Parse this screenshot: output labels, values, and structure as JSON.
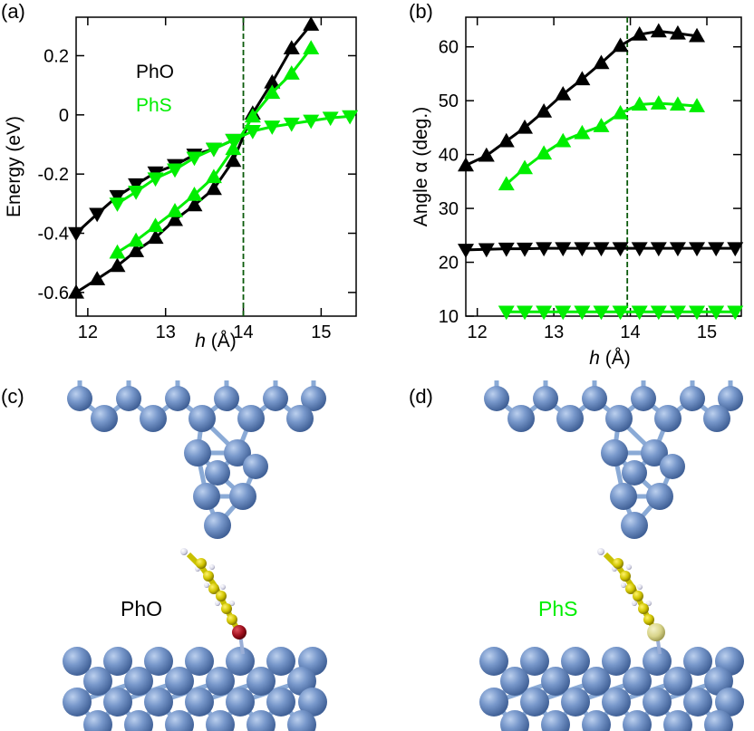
{
  "panel_labels": {
    "a": "(a)",
    "b": "(b)",
    "c": "(c)",
    "d": "(d)"
  },
  "chart_data": [
    {
      "type": "line",
      "panel": "(a)",
      "title": "",
      "xlabel": "h (Å)",
      "xlabel_var": "h",
      "xlabel_unit": "(Å)",
      "ylabel": "Energy (eV)",
      "xlim": [
        11.85,
        15.45
      ],
      "ylim": [
        -0.68,
        0.33
      ],
      "xticks": [
        12,
        13,
        14,
        15
      ],
      "yticks": [
        -0.6,
        -0.4,
        -0.2,
        0,
        0.2
      ],
      "ytick_labels": [
        "-0.6",
        "-0.4",
        "-0.2",
        "0",
        "0.2"
      ],
      "vline": 14.0,
      "grid": false,
      "legend": [
        {
          "name": "PhO",
          "color": "#000000"
        },
        {
          "name": "PhS",
          "color": "#00ee00"
        }
      ],
      "series": [
        {
          "name": "PhO",
          "color": "#000000",
          "marker": "triangle-up",
          "x": [
            11.85,
            12.12,
            12.38,
            12.62,
            12.87,
            13.12,
            13.37,
            13.62,
            13.87,
            14.12,
            14.37,
            14.62,
            14.87
          ],
          "y": [
            -0.6,
            -0.555,
            -0.51,
            -0.46,
            -0.415,
            -0.355,
            -0.305,
            -0.25,
            -0.155,
            0.005,
            0.11,
            0.225,
            0.305
          ]
        },
        {
          "name": "PhO",
          "color": "#000000",
          "marker": "triangle-down",
          "x": [
            11.85,
            12.12,
            12.38,
            12.62,
            12.87,
            13.12,
            13.37,
            13.62,
            13.87
          ],
          "y": [
            -0.4,
            -0.335,
            -0.275,
            -0.235,
            -0.195,
            -0.17,
            -0.135,
            -0.115,
            -0.085
          ]
        },
        {
          "name": "PhS",
          "color": "#00ee00",
          "marker": "triangle-up",
          "x": [
            12.38,
            12.62,
            12.87,
            13.12,
            13.37,
            13.62,
            13.87,
            14.12,
            14.37,
            14.62,
            14.87
          ],
          "y": [
            -0.465,
            -0.425,
            -0.375,
            -0.325,
            -0.27,
            -0.21,
            -0.115,
            -0.005,
            0.075,
            0.14,
            0.225
          ]
        },
        {
          "name": "PhS",
          "color": "#00ee00",
          "marker": "triangle-down",
          "x": [
            12.38,
            12.62,
            12.87,
            13.12,
            13.37,
            13.62,
            13.87,
            14.12,
            14.37,
            14.62,
            14.87,
            15.12,
            15.37
          ],
          "y": [
            -0.3,
            -0.26,
            -0.215,
            -0.185,
            -0.145,
            -0.115,
            -0.085,
            -0.055,
            -0.04,
            -0.03,
            -0.02,
            -0.01,
            -0.005
          ]
        }
      ]
    },
    {
      "type": "line",
      "panel": "(b)",
      "title": "",
      "xlabel": "h (Å)",
      "xlabel_var": "h",
      "xlabel_unit": "(Å)",
      "ylabel": "Angle α (deg.)",
      "xlim": [
        11.85,
        15.45
      ],
      "ylim": [
        10,
        65.5
      ],
      "xticks": [
        12,
        13,
        14,
        15
      ],
      "yticks": [
        10,
        20,
        30,
        40,
        50,
        60
      ],
      "ytick_labels": [
        "10",
        "20",
        "30",
        "40",
        "50",
        "60"
      ],
      "vline": 13.96,
      "grid": false,
      "series": [
        {
          "name": "PhO",
          "color": "#000000",
          "marker": "triangle-up",
          "x": [
            11.85,
            12.12,
            12.38,
            12.62,
            12.87,
            13.12,
            13.37,
            13.62,
            13.87,
            14.12,
            14.37,
            14.62,
            14.87
          ],
          "y": [
            38,
            39.8,
            42.5,
            45,
            48,
            51.2,
            54,
            57,
            60.2,
            62.3,
            62.9,
            62.5,
            62
          ]
        },
        {
          "name": "PhO",
          "color": "#000000",
          "marker": "triangle-down",
          "x": [
            11.85,
            12.12,
            12.38,
            12.62,
            12.87,
            13.12,
            13.37,
            13.62,
            13.87,
            14.12,
            14.37,
            14.62,
            14.87,
            15.12,
            15.37
          ],
          "y": [
            22.3,
            22.4,
            22.5,
            22.5,
            22.6,
            22.6,
            22.6,
            22.6,
            22.6,
            22.6,
            22.6,
            22.6,
            22.6,
            22.6,
            22.6
          ]
        },
        {
          "name": "PhS",
          "color": "#00ee00",
          "marker": "triangle-up",
          "x": [
            12.38,
            12.62,
            12.87,
            13.12,
            13.37,
            13.62,
            13.87,
            14.12,
            14.37,
            14.62,
            14.87
          ],
          "y": [
            34.5,
            37.5,
            40.2,
            42.5,
            44,
            45.3,
            47.7,
            49.3,
            49.5,
            49.3,
            49
          ]
        },
        {
          "name": "PhS",
          "color": "#00ee00",
          "marker": "triangle-down",
          "x": [
            12.38,
            12.62,
            12.87,
            13.12,
            13.37,
            13.62,
            13.87,
            14.12,
            14.37,
            14.62,
            14.87,
            15.12,
            15.37
          ],
          "y": [
            10.8,
            10.8,
            10.8,
            10.8,
            10.8,
            10.8,
            10.8,
            10.8,
            10.8,
            10.8,
            10.8,
            10.8,
            10.8
          ]
        }
      ]
    }
  ],
  "structures": [
    {
      "panel": "(c)",
      "molecule_label": "PhO",
      "label_color": "#000000",
      "anchor_atom_color": "#a0101e",
      "ring_color": "#c8c000"
    },
    {
      "panel": "(d)",
      "molecule_label": "PhS",
      "label_color": "#00ee00",
      "anchor_atom_color": "#dcd88a",
      "ring_color": "#c8c000"
    }
  ],
  "colors": {
    "gold_atom": "#7194c9",
    "bond": "#8aaad6"
  }
}
